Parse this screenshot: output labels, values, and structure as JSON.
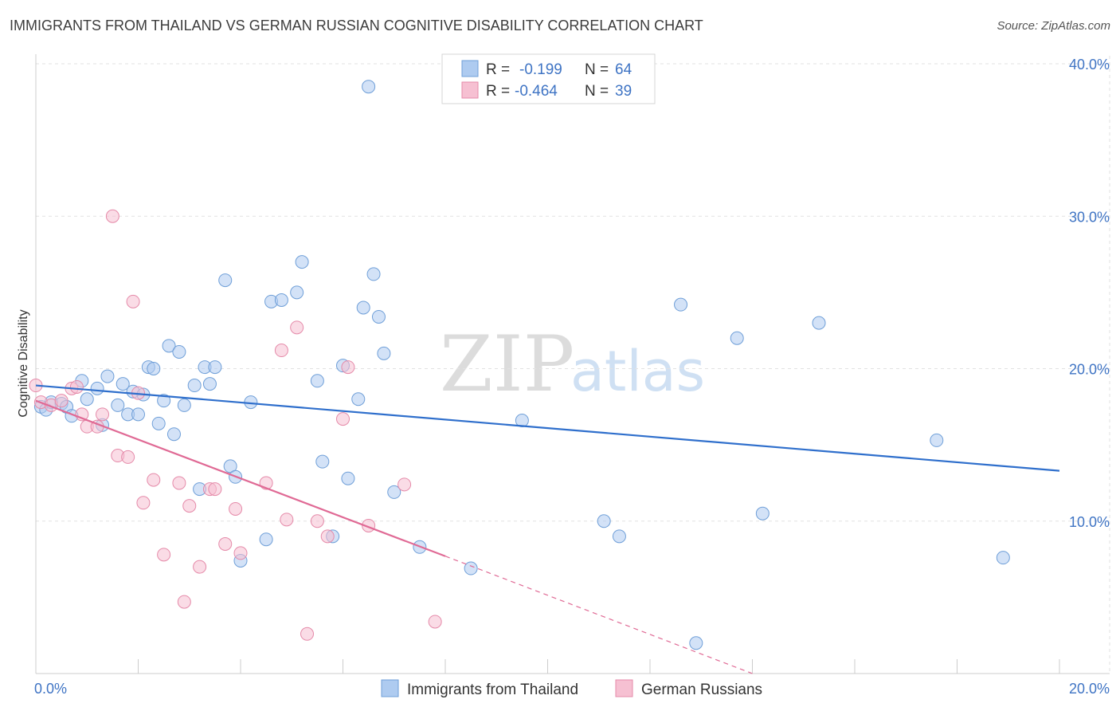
{
  "title": "IMMIGRANTS FROM THAILAND VS GERMAN RUSSIAN COGNITIVE DISABILITY CORRELATION CHART",
  "source": "Source: ZipAtlas.com",
  "watermark": {
    "zip": "ZIP",
    "atlas": "atlas"
  },
  "legend": {
    "r_label": "R =",
    "n_label": "N =",
    "rows": [
      {
        "r": "-0.199",
        "n": "64"
      },
      {
        "r": "-0.464",
        "n": "39"
      }
    ]
  },
  "colors": {
    "blue_fill": "#aecbf0",
    "blue_stroke": "#6f9fd8",
    "blue_line": "#2f6fcc",
    "pink_fill": "#f6c0d2",
    "pink_stroke": "#e58aa9",
    "pink_line": "#e06a95",
    "tick_text": "#3f74c4",
    "grid": "#e2e2e2"
  },
  "chart_data": {
    "type": "scatter",
    "xlabel": "",
    "ylabel": "Cognitive Disability",
    "xlim": [
      0,
      20
    ],
    "ylim": [
      0,
      40
    ],
    "x_ticks": [
      "0.0%",
      "20.0%"
    ],
    "y_ticks": [
      "10.0%",
      "20.0%",
      "30.0%",
      "40.0%"
    ],
    "y_tick_values": [
      10,
      20,
      30,
      40
    ],
    "legend_placement": "top-center",
    "grid": true,
    "series": [
      {
        "name": "Immigrants from Thailand",
        "points": [
          [
            0.1,
            17.5
          ],
          [
            0.2,
            17.3
          ],
          [
            0.3,
            17.8
          ],
          [
            0.5,
            17.7
          ],
          [
            0.6,
            17.5
          ],
          [
            0.7,
            16.9
          ],
          [
            0.9,
            19.2
          ],
          [
            1.0,
            18.0
          ],
          [
            1.2,
            18.7
          ],
          [
            1.3,
            16.3
          ],
          [
            1.4,
            19.5
          ],
          [
            1.6,
            17.6
          ],
          [
            1.7,
            19.0
          ],
          [
            1.8,
            17.0
          ],
          [
            1.9,
            18.5
          ],
          [
            2.0,
            17.0
          ],
          [
            2.1,
            18.3
          ],
          [
            2.2,
            20.1
          ],
          [
            2.3,
            20.0
          ],
          [
            2.4,
            16.4
          ],
          [
            2.5,
            17.9
          ],
          [
            2.6,
            21.5
          ],
          [
            2.7,
            15.7
          ],
          [
            2.8,
            21.1
          ],
          [
            2.9,
            17.6
          ],
          [
            3.1,
            18.9
          ],
          [
            3.2,
            12.1
          ],
          [
            3.3,
            20.1
          ],
          [
            3.4,
            19.0
          ],
          [
            3.5,
            20.1
          ],
          [
            3.7,
            25.8
          ],
          [
            3.8,
            13.6
          ],
          [
            3.9,
            12.9
          ],
          [
            4.0,
            7.4
          ],
          [
            4.2,
            17.8
          ],
          [
            4.5,
            8.8
          ],
          [
            4.6,
            24.4
          ],
          [
            4.8,
            24.5
          ],
          [
            5.1,
            25.0
          ],
          [
            5.2,
            27.0
          ],
          [
            5.5,
            19.2
          ],
          [
            5.6,
            13.9
          ],
          [
            5.8,
            9.0
          ],
          [
            6.0,
            20.2
          ],
          [
            6.1,
            12.8
          ],
          [
            6.3,
            18.0
          ],
          [
            6.4,
            24.0
          ],
          [
            6.5,
            38.5
          ],
          [
            6.6,
            26.2
          ],
          [
            6.7,
            23.4
          ],
          [
            6.8,
            21.0
          ],
          [
            7.0,
            11.9
          ],
          [
            7.5,
            8.3
          ],
          [
            8.5,
            6.9
          ],
          [
            9.5,
            16.6
          ],
          [
            11.1,
            10.0
          ],
          [
            11.4,
            9.0
          ],
          [
            12.6,
            24.2
          ],
          [
            12.9,
            2.0
          ],
          [
            13.7,
            22.0
          ],
          [
            14.2,
            10.5
          ],
          [
            15.3,
            23.0
          ],
          [
            17.6,
            15.3
          ],
          [
            18.9,
            7.6
          ]
        ],
        "trend": {
          "x": [
            0,
            20
          ],
          "y": [
            18.9,
            13.3
          ]
        }
      },
      {
        "name": "German Russians",
        "points": [
          [
            0.0,
            18.9
          ],
          [
            0.1,
            17.8
          ],
          [
            0.3,
            17.6
          ],
          [
            0.5,
            17.9
          ],
          [
            0.7,
            18.7
          ],
          [
            0.8,
            18.8
          ],
          [
            0.9,
            17.0
          ],
          [
            1.0,
            16.2
          ],
          [
            1.2,
            16.2
          ],
          [
            1.3,
            17.0
          ],
          [
            1.5,
            30.0
          ],
          [
            1.6,
            14.3
          ],
          [
            1.8,
            14.2
          ],
          [
            1.9,
            24.4
          ],
          [
            2.0,
            18.4
          ],
          [
            2.1,
            11.2
          ],
          [
            2.3,
            12.7
          ],
          [
            2.5,
            7.8
          ],
          [
            2.8,
            12.5
          ],
          [
            2.9,
            4.7
          ],
          [
            3.0,
            11.0
          ],
          [
            3.2,
            7.0
          ],
          [
            3.4,
            12.1
          ],
          [
            3.5,
            12.1
          ],
          [
            3.7,
            8.5
          ],
          [
            3.9,
            10.8
          ],
          [
            4.0,
            7.9
          ],
          [
            4.5,
            12.5
          ],
          [
            4.8,
            21.2
          ],
          [
            4.9,
            10.1
          ],
          [
            5.1,
            22.7
          ],
          [
            5.3,
            2.6
          ],
          [
            5.5,
            10.0
          ],
          [
            5.7,
            9.0
          ],
          [
            6.0,
            16.7
          ],
          [
            6.1,
            20.1
          ],
          [
            6.5,
            9.7
          ],
          [
            7.2,
            12.4
          ],
          [
            7.8,
            3.4
          ]
        ],
        "trend": {
          "x": [
            0,
            8
          ],
          "y": [
            17.9,
            7.7
          ]
        },
        "trend_extension": {
          "x": [
            8,
            14
          ],
          "y": [
            7.7,
            0
          ]
        }
      }
    ]
  },
  "bottom_legend": [
    {
      "label": "Immigrants from Thailand"
    },
    {
      "label": "German Russians"
    }
  ]
}
